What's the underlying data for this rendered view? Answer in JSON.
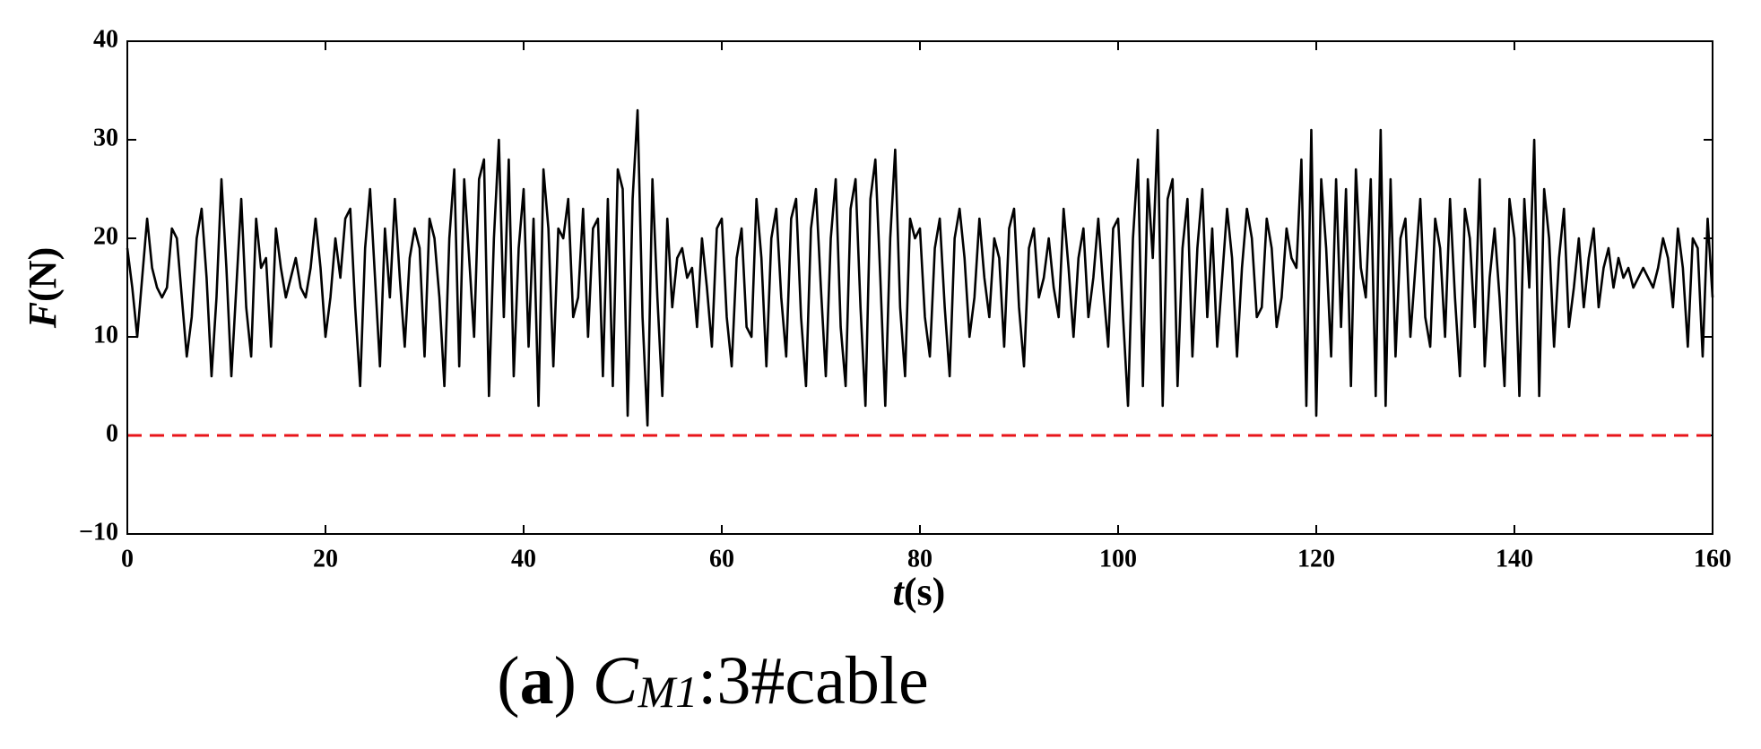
{
  "chart_data": {
    "type": "line",
    "ylabel_var": "F",
    "ylabel_unit": "(N)",
    "xlabel_var": "t",
    "xlabel_unit": "(s)",
    "caption_open": "(",
    "caption_tag": "a",
    "caption_close": ")",
    "caption_var": "C",
    "caption_sub": "M1",
    "caption_text": ":3#cable",
    "xlim": [
      0,
      160
    ],
    "ylim": [
      -10,
      40
    ],
    "xticks": [
      0,
      20,
      40,
      60,
      80,
      100,
      120,
      140,
      160
    ],
    "yticks": [
      {
        "value": -10,
        "label": "−10"
      },
      0,
      10,
      20,
      30,
      40
    ],
    "hline": {
      "value": 0,
      "color": "#e8141a"
    },
    "x": [
      0,
      0.5,
      1,
      1.5,
      2,
      2.5,
      3,
      3.5,
      4,
      4.5,
      5,
      5.5,
      6,
      6.5,
      7,
      7.5,
      8,
      8.5,
      9,
      9.5,
      10,
      10.5,
      11,
      11.5,
      12,
      12.5,
      13,
      13.5,
      14,
      14.5,
      15,
      15.5,
      16,
      16.5,
      17,
      17.5,
      18,
      18.5,
      19,
      19.5,
      20,
      20.5,
      21,
      21.5,
      22,
      22.5,
      23,
      23.5,
      24,
      24.5,
      25,
      25.5,
      26,
      26.5,
      27,
      27.5,
      28,
      28.5,
      29,
      29.5,
      30,
      30.5,
      31,
      31.5,
      32,
      32.5,
      33,
      33.5,
      34,
      34.5,
      35,
      35.5,
      36,
      36.5,
      37,
      37.5,
      38,
      38.5,
      39,
      39.5,
      40,
      40.5,
      41,
      41.5,
      42,
      42.5,
      43,
      43.5,
      44,
      44.5,
      45,
      45.5,
      46,
      46.5,
      47,
      47.5,
      48,
      48.5,
      49,
      49.5,
      50,
      50.5,
      51,
      51.5,
      52,
      52.5,
      53,
      53.5,
      54,
      54.5,
      55,
      55.5,
      56,
      56.5,
      57,
      57.5,
      58,
      58.5,
      59,
      59.5,
      60,
      60.5,
      61,
      61.5,
      62,
      62.5,
      63,
      63.5,
      64,
      64.5,
      65,
      65.5,
      66,
      66.5,
      67,
      67.5,
      68,
      68.5,
      69,
      69.5,
      70,
      70.5,
      71,
      71.5,
      72,
      72.5,
      73,
      73.5,
      74,
      74.5,
      75,
      75.5,
      76,
      76.5,
      77,
      77.5,
      78,
      78.5,
      79,
      79.5,
      80,
      80.5,
      81,
      81.5,
      82,
      82.5,
      83,
      83.5,
      84,
      84.5,
      85,
      85.5,
      86,
      86.5,
      87,
      87.5,
      88,
      88.5,
      89,
      89.5,
      90,
      90.5,
      91,
      91.5,
      92,
      92.5,
      93,
      93.5,
      94,
      94.5,
      95,
      95.5,
      96,
      96.5,
      97,
      97.5,
      98,
      98.5,
      99,
      99.5,
      100,
      100.5,
      101,
      101.5,
      102,
      102.5,
      103,
      103.5,
      104,
      104.5,
      105,
      105.5,
      106,
      106.5,
      107,
      107.5,
      108,
      108.5,
      109,
      109.5,
      110,
      110.5,
      111,
      111.5,
      112,
      112.5,
      113,
      113.5,
      114,
      114.5,
      115,
      115.5,
      116,
      116.5,
      117,
      117.5,
      118,
      118.5,
      119,
      119.5,
      120,
      120.5,
      121,
      121.5,
      122,
      122.5,
      123,
      123.5,
      124,
      124.5,
      125,
      125.5,
      126,
      126.5,
      127,
      127.5,
      128,
      128.5,
      129,
      129.5,
      130,
      130.5,
      131,
      131.5,
      132,
      132.5,
      133,
      133.5,
      134,
      134.5,
      135,
      135.5,
      136,
      136.5,
      137,
      137.5,
      138,
      138.5,
      139,
      139.5,
      140,
      140.5,
      141,
      141.5,
      142,
      142.5,
      143,
      143.5,
      144,
      144.5,
      145,
      145.5,
      146,
      146.5,
      147,
      147.5,
      148,
      148.5,
      149,
      149.5,
      150,
      150.5,
      151,
      151.5,
      152,
      152.5,
      153,
      153.5,
      154,
      154.5,
      155,
      155.5,
      156,
      156.5,
      157,
      157.5,
      158,
      158.5,
      159,
      159.5,
      160
    ],
    "series": [
      {
        "color": "#000000",
        "values": [
          19,
          15,
          10,
          16,
          22,
          17,
          15,
          14,
          15,
          21,
          20,
          14,
          8,
          12,
          20,
          23,
          16,
          6,
          14,
          26,
          17,
          6,
          15,
          24,
          13,
          8,
          22,
          17,
          18,
          9,
          21,
          17,
          14,
          16,
          18,
          15,
          14,
          17,
          22,
          17,
          10,
          14,
          20,
          16,
          22,
          23,
          13,
          5,
          19,
          25,
          16,
          7,
          21,
          14,
          24,
          16,
          9,
          18,
          21,
          19,
          8,
          22,
          20,
          14,
          5,
          20,
          27,
          7,
          26,
          18,
          10,
          26,
          28,
          4,
          20,
          30,
          12,
          28,
          6,
          19,
          25,
          9,
          22,
          3,
          27,
          21,
          7,
          21,
          20,
          24,
          12,
          14,
          23,
          10,
          21,
          22,
          6,
          24,
          5,
          27,
          25,
          2,
          24,
          33,
          12,
          1,
          26,
          14,
          4,
          22,
          13,
          18,
          19,
          16,
          17,
          11,
          20,
          15,
          9,
          21,
          22,
          12,
          7,
          18,
          21,
          11,
          10,
          24,
          18,
          7,
          20,
          23,
          14,
          8,
          22,
          24,
          12,
          5,
          21,
          25,
          15,
          6,
          20,
          26,
          11,
          5,
          23,
          26,
          13,
          3,
          24,
          28,
          16,
          3,
          20,
          29,
          13,
          6,
          22,
          20,
          21,
          12,
          8,
          19,
          22,
          13,
          6,
          20,
          23,
          18,
          10,
          14,
          22,
          16,
          12,
          20,
          18,
          9,
          21,
          23,
          13,
          7,
          19,
          21,
          14,
          16,
          20,
          15,
          12,
          23,
          17,
          10,
          18,
          21,
          12,
          16,
          22,
          15,
          9,
          21,
          22,
          12,
          3,
          20,
          28,
          5,
          26,
          18,
          31,
          3,
          24,
          26,
          5,
          19,
          24,
          8,
          19,
          25,
          12,
          21,
          9,
          16,
          23,
          18,
          8,
          17,
          23,
          20,
          12,
          13,
          22,
          19,
          11,
          14,
          21,
          18,
          17,
          28,
          3,
          31,
          2,
          26,
          19,
          8,
          26,
          11,
          25,
          5,
          27,
          17,
          14,
          26,
          4,
          31,
          3,
          26,
          8,
          20,
          22,
          10,
          17,
          24,
          12,
          9,
          22,
          19,
          10,
          24,
          14,
          6,
          23,
          20,
          11,
          26,
          7,
          16,
          21,
          14,
          5,
          24,
          20,
          4,
          24,
          15,
          30,
          4,
          25,
          20,
          9,
          18,
          23,
          11,
          15,
          20,
          13,
          18,
          21,
          13,
          17,
          19,
          15,
          18,
          16,
          17,
          15,
          16,
          17,
          16,
          15,
          17,
          20,
          18,
          13,
          21,
          17,
          9,
          20,
          19,
          8,
          22,
          14
        ]
      }
    ]
  }
}
